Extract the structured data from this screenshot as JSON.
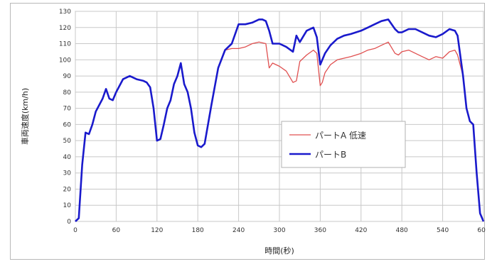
{
  "chart_data": {
    "type": "line",
    "xlabel": "時間(秒)",
    "ylabel": "車両速度(km/h)",
    "xlim": [
      0,
      600
    ],
    "ylim": [
      0,
      130
    ],
    "x_ticks": [
      "0",
      "60",
      "120",
      "180",
      "240",
      "300",
      "360",
      "420",
      "480",
      "540",
      "600"
    ],
    "y_ticks": [
      "0",
      "10",
      "20",
      "30",
      "40",
      "50",
      "60",
      "70",
      "80",
      "90",
      "100",
      "110",
      "120",
      "130"
    ],
    "grid": true,
    "legend_position": "middle-right",
    "series": [
      {
        "name": "パートA 低速",
        "color": "#e05050",
        "x": [
          0,
          5,
          10,
          15,
          20,
          25,
          30,
          40,
          45,
          50,
          55,
          60,
          70,
          80,
          90,
          100,
          105,
          110,
          115,
          120,
          125,
          130,
          135,
          140,
          145,
          150,
          155,
          160,
          165,
          170,
          175,
          180,
          185,
          190,
          200,
          210,
          220,
          230,
          240,
          250,
          260,
          270,
          280,
          285,
          290,
          300,
          310,
          320,
          325,
          330,
          340,
          350,
          355,
          360,
          363,
          367,
          375,
          385,
          395,
          405,
          420,
          430,
          440,
          450,
          460,
          470,
          475,
          480,
          490,
          500,
          510,
          520,
          530,
          540,
          550,
          558,
          562,
          570,
          575,
          580,
          585,
          590,
          595,
          600
        ],
        "y": [
          0,
          2,
          35,
          55,
          54,
          60,
          68,
          76,
          82,
          76,
          75,
          80,
          88,
          90,
          88,
          87,
          86,
          83,
          70,
          50,
          51,
          60,
          70,
          75,
          85,
          90,
          98,
          85,
          80,
          70,
          55,
          47,
          46,
          48,
          72,
          95,
          106,
          107,
          107,
          108,
          110,
          111,
          110,
          95,
          98,
          96,
          93,
          86,
          87,
          99,
          103,
          106,
          104,
          84,
          86,
          92,
          97,
          100,
          101,
          102,
          104,
          106,
          107,
          109,
          111,
          104,
          103,
          105,
          106,
          104,
          102,
          100,
          102,
          101,
          105,
          106,
          103,
          90,
          70,
          62,
          60,
          30,
          5,
          0
        ]
      },
      {
        "name": "パートB",
        "color": "#1a1acc",
        "x": [
          0,
          5,
          10,
          15,
          20,
          25,
          30,
          40,
          45,
          50,
          55,
          60,
          70,
          80,
          90,
          100,
          105,
          110,
          115,
          120,
          125,
          130,
          135,
          140,
          145,
          150,
          155,
          160,
          165,
          170,
          175,
          180,
          185,
          190,
          200,
          210,
          220,
          230,
          240,
          250,
          260,
          270,
          275,
          280,
          285,
          290,
          300,
          310,
          320,
          325,
          330,
          340,
          350,
          355,
          360,
          363,
          367,
          375,
          385,
          395,
          405,
          420,
          430,
          440,
          450,
          460,
          470,
          475,
          480,
          490,
          500,
          510,
          520,
          530,
          540,
          550,
          558,
          562,
          570,
          575,
          580,
          585,
          590,
          595,
          600
        ],
        "y": [
          0,
          2,
          35,
          55,
          54,
          60,
          68,
          76,
          82,
          76,
          75,
          80,
          88,
          90,
          88,
          87,
          86,
          83,
          70,
          50,
          51,
          60,
          70,
          75,
          85,
          90,
          98,
          85,
          80,
          70,
          55,
          47,
          46,
          48,
          72,
          95,
          106,
          110,
          122,
          122,
          123,
          125,
          125,
          124,
          118,
          110,
          110,
          108,
          105,
          115,
          111,
          118,
          120,
          114,
          97,
          100,
          104,
          109,
          113,
          115,
          116,
          118,
          120,
          122,
          124,
          125,
          119,
          117,
          117,
          119,
          119,
          117,
          115,
          114,
          116,
          119,
          118,
          115,
          90,
          70,
          62,
          60,
          30,
          5,
          0
        ]
      }
    ]
  }
}
